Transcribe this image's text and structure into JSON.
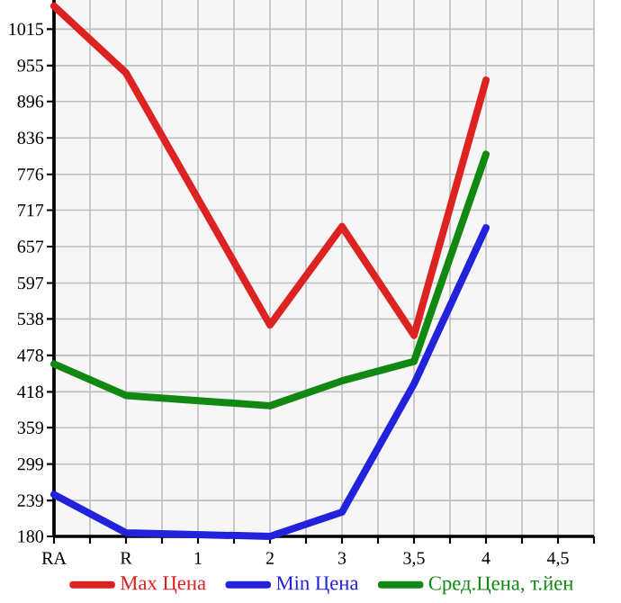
{
  "chart_data": {
    "type": "line",
    "categories": [
      "RA",
      "R",
      "1",
      "2",
      "3",
      "3,5",
      "4",
      "4,5"
    ],
    "ylim": [
      180,
      1063
    ],
    "yticks": [
      180,
      239,
      299,
      359,
      418,
      478,
      538,
      597,
      657,
      717,
      776,
      836,
      896,
      955,
      1015
    ],
    "series": [
      {
        "name": "Max Цена",
        "color": "#dd2222",
        "values": [
          1053,
          943,
          null,
          528,
          690,
          511,
          931,
          null
        ]
      },
      {
        "name": "Min Цена",
        "color": "#2222dd",
        "values": [
          249,
          186,
          null,
          180,
          220,
          431,
          688,
          null
        ]
      },
      {
        "name": "Сред.Цена, т.йен",
        "color": "#118811",
        "values": [
          464,
          412,
          null,
          395,
          436,
          468,
          809,
          null
        ]
      }
    ],
    "grid": true,
    "legend": "bottom",
    "marker": "none",
    "line_style": "solid"
  }
}
